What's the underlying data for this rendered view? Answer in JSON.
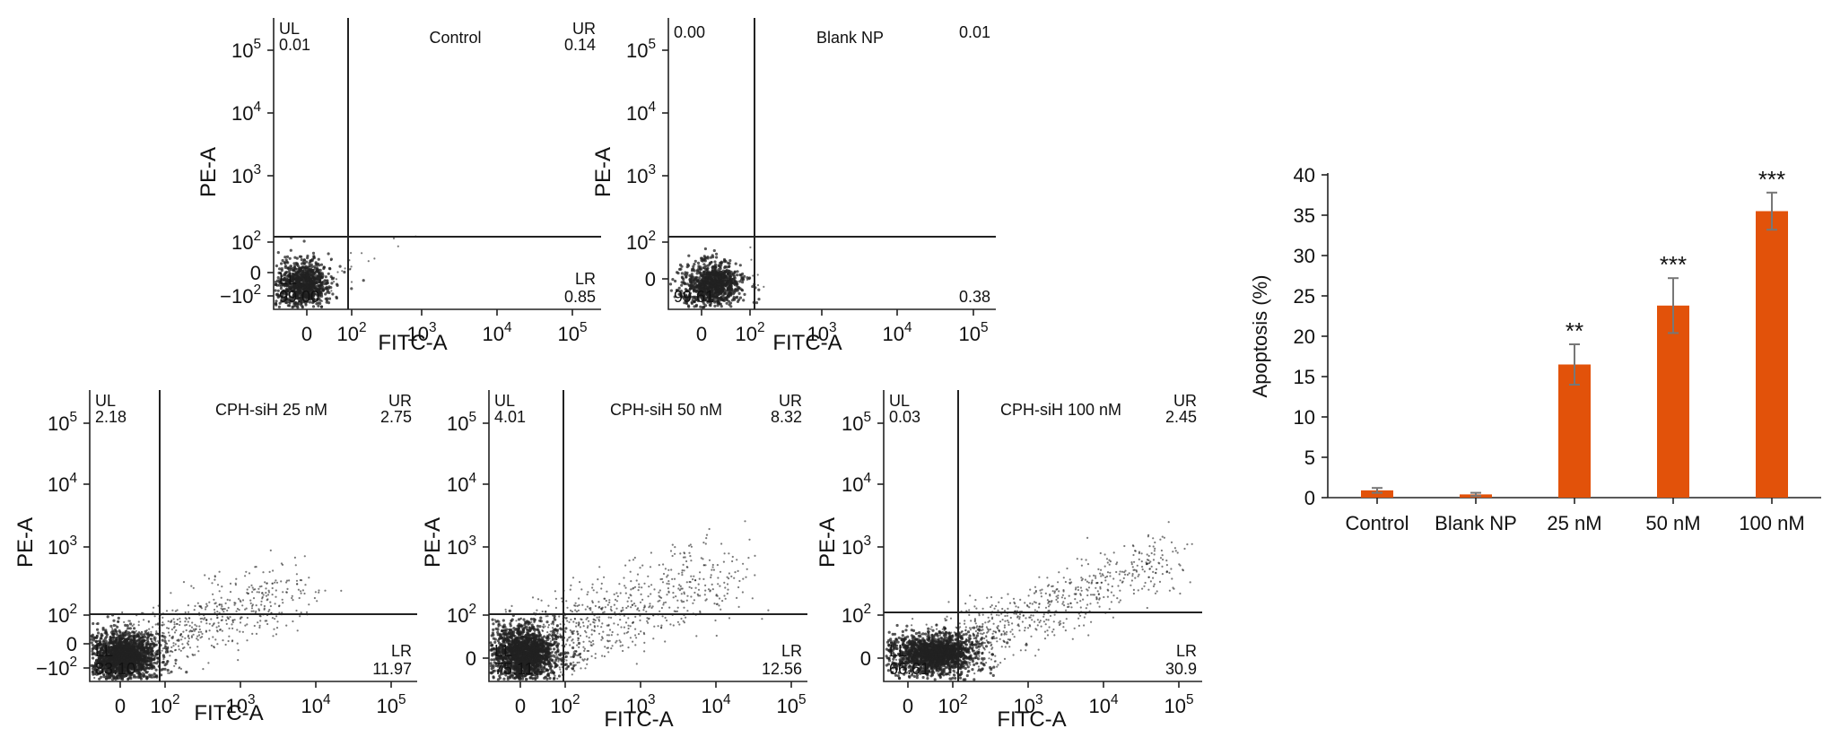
{
  "flow_panels": [
    {
      "title": "Control",
      "xlabel": "FITC-A",
      "ylabel": "PE-A",
      "x_ticks": [
        "0",
        "10",
        "10",
        "10",
        "10"
      ],
      "x_exps": [
        "",
        "2",
        "3",
        "4",
        "5"
      ],
      "y_ticks": [
        "−10",
        "0",
        "10",
        "10",
        "10",
        "10"
      ],
      "y_exps": [
        "2",
        "",
        "2",
        "3",
        "4",
        "5"
      ],
      "quadrants": {
        "UL_label": "UL",
        "UL": "0.01",
        "UR_label": "UR",
        "UR": "0.14",
        "LL_label": "LL",
        "LL": "99.00",
        "LR_label": "LR",
        "LR": "0.85"
      }
    },
    {
      "title": "Blank NP",
      "xlabel": "FITC-A",
      "ylabel": "PE-A",
      "x_ticks": [
        "0",
        "10",
        "10",
        "10",
        "10"
      ],
      "x_exps": [
        "",
        "2",
        "3",
        "4",
        "5"
      ],
      "y_ticks": [
        "0",
        "10",
        "10",
        "10",
        "10"
      ],
      "y_exps": [
        "",
        "2",
        "3",
        "4",
        "5"
      ],
      "quadrants": {
        "UL_label": "",
        "UL": "0.00",
        "UR_label": "",
        "UR": "0.01",
        "LL_label": "",
        "LL": "99.61",
        "LR_label": "",
        "LR": "0.38"
      }
    },
    {
      "title": "CPH-siH 25 nM",
      "xlabel": "FITC-A",
      "ylabel": "PE-A",
      "x_ticks": [
        "0",
        "10",
        "10",
        "10",
        "10"
      ],
      "x_exps": [
        "",
        "2",
        "3",
        "4",
        "5"
      ],
      "y_ticks": [
        "−10",
        "0",
        "10",
        "10",
        "10",
        "10"
      ],
      "y_exps": [
        "2",
        "",
        "2",
        "3",
        "4",
        "5"
      ],
      "quadrants": {
        "UL_label": "UL",
        "UL": "2.18",
        "UR_label": "UR",
        "UR": "2.75",
        "LL_label": "LL",
        "LL": "83.10",
        "LR_label": "LR",
        "LR": "11.97"
      }
    },
    {
      "title": "CPH-siH 50 nM",
      "xlabel": "FITC-A",
      "ylabel": "PE-A",
      "x_ticks": [
        "0",
        "10",
        "10",
        "10",
        "10"
      ],
      "x_exps": [
        "",
        "2",
        "3",
        "4",
        "5"
      ],
      "y_ticks": [
        "0",
        "10",
        "10",
        "10",
        "10"
      ],
      "y_exps": [
        "",
        "2",
        "3",
        "4",
        "5"
      ],
      "quadrants": {
        "UL_label": "UL",
        "UL": "4.01",
        "UR_label": "UR",
        "UR": "8.32",
        "LL_label": "LL",
        "LL": "75.11",
        "LR_label": "LR",
        "LR": "12.56"
      }
    },
    {
      "title": "CPH-siH 100 nM",
      "xlabel": "FITC-A",
      "ylabel": "PE-A",
      "x_ticks": [
        "0",
        "10",
        "10",
        "10",
        "10"
      ],
      "x_exps": [
        "",
        "2",
        "3",
        "4",
        "5"
      ],
      "y_ticks": [
        "0",
        "10",
        "10",
        "10",
        "10"
      ],
      "y_exps": [
        "",
        "2",
        "3",
        "4",
        "5"
      ],
      "quadrants": {
        "UL_label": "UL",
        "UL": "0.03",
        "UR_label": "UR",
        "UR": "2.45",
        "LL_label": "LL",
        "LL": "66.61",
        "LR_label": "LR",
        "LR": "30.9"
      }
    }
  ],
  "chart_data": {
    "type": "bar",
    "categories": [
      "Control",
      "Blank NP",
      "25 nM",
      "50 nM",
      "100 nM"
    ],
    "values": [
      0.9,
      0.4,
      16.5,
      23.8,
      35.5
    ],
    "errors": [
      0.3,
      0.2,
      2.5,
      3.4,
      2.3
    ],
    "significance": [
      "",
      "",
      "**",
      "***",
      "***"
    ],
    "title": "",
    "xlabel": "",
    "ylabel": "Apoptosis (%)",
    "ylim": [
      0,
      40
    ],
    "yticks": [
      "0",
      "5",
      "10",
      "15",
      "20",
      "25",
      "30",
      "35",
      "40"
    ],
    "bar_color": "#E2520A",
    "error_color": "#777777",
    "grid": false
  }
}
